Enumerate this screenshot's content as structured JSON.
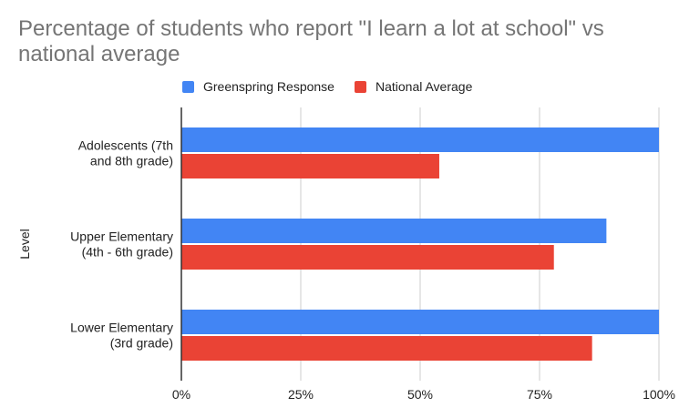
{
  "chart_data": {
    "type": "bar",
    "orientation": "horizontal",
    "title": "Percentage of students who report \"I learn a lot at school\" vs national average",
    "ylabel": "Level",
    "xlabel": "",
    "xlim": [
      0,
      100
    ],
    "x_ticks": [
      0,
      25,
      50,
      75,
      100
    ],
    "x_tick_labels": [
      "0%",
      "25%",
      "50%",
      "75%",
      "100%"
    ],
    "categories": [
      [
        "Adolescents (7th",
        "and 8th grade)"
      ],
      [
        "Upper Elementary",
        "(4th - 6th grade)"
      ],
      [
        "Lower Elementary",
        "(3rd grade)"
      ]
    ],
    "series": [
      {
        "name": "Greenspring Response",
        "color": "#4285f4",
        "values": [
          100,
          89,
          100
        ]
      },
      {
        "name": "National Average",
        "color": "#ea4335",
        "values": [
          54,
          78,
          86
        ]
      }
    ],
    "legend_position": "top",
    "grid": true
  }
}
